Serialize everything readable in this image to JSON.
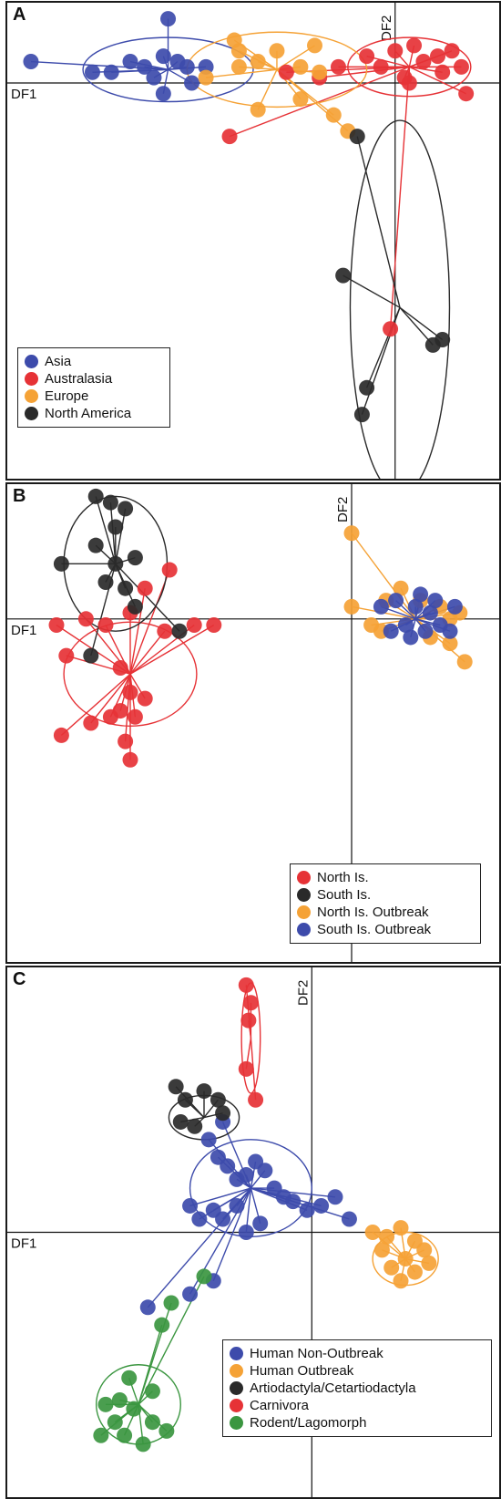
{
  "colors": {
    "blue": "#3d4bab",
    "red": "#e63236",
    "orange": "#f5a236",
    "black": "#2a2a2a",
    "green": "#3b9640"
  },
  "chart_data": [
    {
      "panel": "A",
      "type": "scatter",
      "xlabel": "DF1",
      "ylabel": "DF2",
      "xlim": [
        -8.2,
        2.2
      ],
      "ylim": [
        -7.4,
        1.5
      ],
      "legend_position": "bottom-left",
      "series": [
        {
          "name": "Asia",
          "color": "blue",
          "centroid": [
            -4.8,
            0.25
          ],
          "ellipse": {
            "rx": 1.8,
            "ry": 0.6
          },
          "points": [
            [
              -7.7,
              0.4
            ],
            [
              -6.4,
              0.2
            ],
            [
              -6.0,
              0.2
            ],
            [
              -5.6,
              0.4
            ],
            [
              -5.3,
              0.3
            ],
            [
              -5.1,
              0.1
            ],
            [
              -4.9,
              0.5
            ],
            [
              -4.8,
              1.2
            ],
            [
              -4.6,
              0.4
            ],
            [
              -4.4,
              0.3
            ],
            [
              -4.3,
              0.0
            ],
            [
              -4.0,
              0.3
            ],
            [
              -4.9,
              -0.2
            ]
          ]
        },
        {
          "name": "Australasia",
          "color": "red",
          "centroid": [
            0.3,
            0.3
          ],
          "ellipse": {
            "rx": 1.3,
            "ry": 0.55
          },
          "points": [
            [
              -3.5,
              -1.0
            ],
            [
              -2.3,
              0.2
            ],
            [
              -1.6,
              0.1
            ],
            [
              -1.2,
              0.3
            ],
            [
              -0.6,
              0.5
            ],
            [
              -0.3,
              0.3
            ],
            [
              0.0,
              0.6
            ],
            [
              0.2,
              0.1
            ],
            [
              0.4,
              0.7
            ],
            [
              0.6,
              0.4
            ],
            [
              0.9,
              0.5
            ],
            [
              1.2,
              0.6
            ],
            [
              1.4,
              0.3
            ],
            [
              1.5,
              -0.2
            ],
            [
              1.0,
              0.2
            ],
            [
              0.3,
              0.0
            ],
            [
              -0.1,
              -4.6
            ]
          ]
        },
        {
          "name": "Europe",
          "color": "orange",
          "centroid": [
            -2.5,
            0.25
          ],
          "ellipse": {
            "rx": 1.9,
            "ry": 0.7
          },
          "points": [
            [
              -4.0,
              0.1
            ],
            [
              -3.4,
              0.8
            ],
            [
              -3.3,
              0.6
            ],
            [
              -2.9,
              0.4
            ],
            [
              -2.5,
              0.6
            ],
            [
              -2.0,
              0.3
            ],
            [
              -1.7,
              0.7
            ],
            [
              -1.3,
              -0.6
            ],
            [
              -1.0,
              -0.9
            ],
            [
              -2.0,
              -0.3
            ],
            [
              -2.9,
              -0.5
            ],
            [
              -3.3,
              0.3
            ],
            [
              -1.6,
              0.2
            ]
          ]
        },
        {
          "name": "North America",
          "color": "black",
          "centroid": [
            0.1,
            -4.2
          ],
          "ellipse": {
            "rx": 1.05,
            "ry": 3.5
          },
          "points": [
            [
              -0.8,
              -1.0
            ],
            [
              -1.1,
              -3.6
            ],
            [
              -0.7,
              -6.2
            ],
            [
              -0.6,
              -5.7
            ],
            [
              0.8,
              -4.9
            ],
            [
              1.0,
              -4.8
            ]
          ]
        }
      ]
    },
    {
      "panel": "B",
      "type": "scatter",
      "xlabel": "DF1",
      "ylabel": "DF2",
      "xlim": [
        -7.0,
        3.0
      ],
      "ylim": [
        -5.6,
        2.2
      ],
      "legend_position": "bottom-right",
      "series": [
        {
          "name": "North Is.",
          "color": "red",
          "centroid": [
            -4.5,
            -0.9
          ],
          "ellipse": {
            "rx": 1.35,
            "ry": 0.85
          },
          "points": [
            [
              -6.0,
              -0.1
            ],
            [
              -5.8,
              -0.6
            ],
            [
              -5.4,
              0.0
            ],
            [
              -5.0,
              -0.1
            ],
            [
              -4.5,
              0.1
            ],
            [
              -4.2,
              0.5
            ],
            [
              -3.7,
              0.8
            ],
            [
              -3.2,
              -0.1
            ],
            [
              -2.8,
              -0.1
            ],
            [
              -3.8,
              -0.2
            ],
            [
              -4.5,
              -1.2
            ],
            [
              -4.7,
              -1.5
            ],
            [
              -4.6,
              -2.0
            ],
            [
              -4.5,
              -2.3
            ],
            [
              -5.3,
              -1.7
            ],
            [
              -5.9,
              -1.9
            ],
            [
              -4.9,
              -1.6
            ],
            [
              -4.4,
              -1.6
            ],
            [
              -4.2,
              -1.3
            ],
            [
              -4.7,
              -0.8
            ]
          ]
        },
        {
          "name": "South Is.",
          "color": "black",
          "centroid": [
            -4.8,
            0.9
          ],
          "ellipse": {
            "rx": 1.05,
            "ry": 1.1
          },
          "points": [
            [
              -5.2,
              2.0
            ],
            [
              -4.9,
              1.9
            ],
            [
              -4.6,
              1.8
            ],
            [
              -4.8,
              1.5
            ],
            [
              -5.2,
              1.2
            ],
            [
              -4.4,
              1.0
            ],
            [
              -4.8,
              0.9
            ],
            [
              -5.0,
              0.6
            ],
            [
              -4.6,
              0.5
            ],
            [
              -4.4,
              0.2
            ],
            [
              -5.9,
              0.9
            ],
            [
              -3.5,
              -0.2
            ],
            [
              -5.3,
              -0.6
            ]
          ]
        },
        {
          "name": "North Is. Outbreak",
          "color": "orange",
          "centroid": [
            1.3,
            0.0
          ],
          "ellipse": null,
          "points": [
            [
              0.0,
              1.4
            ],
            [
              0.0,
              0.2
            ],
            [
              0.4,
              -0.1
            ],
            [
              0.7,
              0.3
            ],
            [
              1.0,
              0.5
            ],
            [
              1.4,
              0.3
            ],
            [
              1.8,
              0.2
            ],
            [
              2.0,
              0.0
            ],
            [
              2.2,
              0.1
            ],
            [
              2.0,
              -0.4
            ],
            [
              2.3,
              -0.7
            ],
            [
              0.6,
              -0.2
            ],
            [
              1.6,
              -0.3
            ]
          ]
        },
        {
          "name": "South Is. Outbreak",
          "color": "blue",
          "centroid": [
            1.3,
            0.0
          ],
          "ellipse": null,
          "points": [
            [
              0.6,
              0.2
            ],
            [
              0.9,
              0.3
            ],
            [
              1.1,
              -0.1
            ],
            [
              1.3,
              0.2
            ],
            [
              1.5,
              -0.2
            ],
            [
              1.6,
              0.1
            ],
            [
              1.8,
              -0.1
            ],
            [
              2.0,
              -0.2
            ],
            [
              1.2,
              -0.3
            ],
            [
              1.4,
              0.4
            ],
            [
              0.8,
              -0.2
            ],
            [
              1.7,
              0.3
            ],
            [
              2.1,
              0.2
            ]
          ]
        }
      ]
    },
    {
      "panel": "C",
      "type": "scatter",
      "xlabel": "DF1",
      "ylabel": "DF2",
      "xlim": [
        -6.5,
        4.0
      ],
      "ylim": [
        -6.0,
        6.0
      ],
      "legend_position": "bottom-right",
      "series": [
        {
          "name": "Human Non-Outbreak",
          "color": "blue",
          "centroid": [
            -1.3,
            1.0
          ],
          "ellipse": {
            "rx": 1.3,
            "ry": 1.1
          },
          "points": [
            [
              -2.2,
              2.1
            ],
            [
              -2.0,
              1.7
            ],
            [
              -1.8,
              1.5
            ],
            [
              -1.6,
              1.2
            ],
            [
              -1.4,
              1.3
            ],
            [
              -1.2,
              1.6
            ],
            [
              -1.0,
              1.4
            ],
            [
              -0.8,
              1.0
            ],
            [
              -0.6,
              0.8
            ],
            [
              -0.4,
              0.7
            ],
            [
              -0.1,
              0.5
            ],
            [
              0.2,
              0.6
            ],
            [
              0.5,
              0.8
            ],
            [
              0.8,
              0.3
            ],
            [
              -1.6,
              0.6
            ],
            [
              -1.9,
              0.3
            ],
            [
              -2.1,
              0.5
            ],
            [
              -2.4,
              0.3
            ],
            [
              -2.6,
              0.6
            ],
            [
              -1.4,
              0.0
            ],
            [
              -1.1,
              0.2
            ],
            [
              -2.1,
              -1.1
            ],
            [
              -2.6,
              -1.4
            ],
            [
              -3.5,
              -1.7
            ],
            [
              -1.9,
              2.5
            ]
          ]
        },
        {
          "name": "Human Outbreak",
          "color": "orange",
          "centroid": [
            2.0,
            -0.6
          ],
          "ellipse": {
            "rx": 0.7,
            "ry": 0.6
          },
          "points": [
            [
              1.3,
              0.0
            ],
            [
              1.6,
              -0.1
            ],
            [
              1.9,
              0.1
            ],
            [
              2.2,
              -0.2
            ],
            [
              2.4,
              -0.4
            ],
            [
              2.0,
              -0.6
            ],
            [
              1.7,
              -0.8
            ],
            [
              2.2,
              -0.9
            ],
            [
              1.9,
              -1.1
            ],
            [
              2.5,
              -0.7
            ],
            [
              1.5,
              -0.4
            ]
          ]
        },
        {
          "name": "Artiodactyla/Cetartiodactyla",
          "color": "black",
          "centroid": [
            -2.3,
            2.6
          ],
          "ellipse": {
            "rx": 0.75,
            "ry": 0.5
          },
          "points": [
            [
              -2.9,
              3.3
            ],
            [
              -2.7,
              3.0
            ],
            [
              -2.3,
              3.2
            ],
            [
              -2.0,
              3.0
            ],
            [
              -1.9,
              2.7
            ],
            [
              -2.8,
              2.5
            ],
            [
              -2.5,
              2.4
            ]
          ]
        },
        {
          "name": "Carnivora",
          "color": "red",
          "centroid": [
            -1.3,
            4.4
          ],
          "ellipse": {
            "rx": 0.2,
            "ry": 1.25
          },
          "points": [
            [
              -1.4,
              5.6
            ],
            [
              -1.3,
              5.2
            ],
            [
              -1.35,
              4.8
            ],
            [
              -1.4,
              3.7
            ],
            [
              -1.2,
              3.0
            ]
          ]
        },
        {
          "name": "Rodent/Lagomorph",
          "color": "green",
          "centroid": [
            -3.7,
            -3.9
          ],
          "ellipse": {
            "rx": 0.9,
            "ry": 0.9
          },
          "points": [
            [
              -2.3,
              -1.0
            ],
            [
              -3.0,
              -1.6
            ],
            [
              -3.2,
              -2.1
            ],
            [
              -3.4,
              -3.6
            ],
            [
              -3.9,
              -3.3
            ],
            [
              -3.8,
              -4.0
            ],
            [
              -4.2,
              -4.3
            ],
            [
              -4.5,
              -4.6
            ],
            [
              -4.0,
              -4.6
            ],
            [
              -3.4,
              -4.3
            ],
            [
              -3.1,
              -4.5
            ],
            [
              -4.4,
              -3.9
            ],
            [
              -3.6,
              -4.8
            ],
            [
              -4.1,
              -3.8
            ]
          ]
        }
      ]
    }
  ]
}
